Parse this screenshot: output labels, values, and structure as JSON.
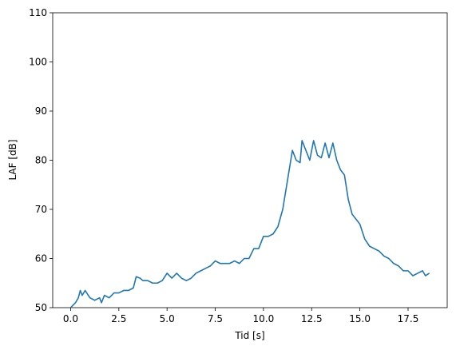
{
  "chart_data": {
    "type": "line",
    "x_label": "Tid [s]",
    "y_label": "LAF [dB]",
    "x": [
      0,
      0.25,
      0.4,
      0.5,
      0.6,
      0.75,
      1.0,
      1.25,
      1.5,
      1.6,
      1.75,
      2.0,
      2.25,
      2.5,
      2.75,
      3.0,
      3.25,
      3.4,
      3.6,
      3.75,
      4.0,
      4.25,
      4.5,
      4.75,
      5.0,
      5.25,
      5.5,
      5.75,
      6.0,
      6.25,
      6.5,
      6.75,
      7.0,
      7.25,
      7.5,
      7.75,
      8.0,
      8.25,
      8.5,
      8.75,
      9.0,
      9.25,
      9.5,
      9.75,
      10.0,
      10.25,
      10.5,
      10.75,
      11.0,
      11.25,
      11.5,
      11.7,
      11.9,
      12.0,
      12.2,
      12.4,
      12.6,
      12.8,
      13.0,
      13.2,
      13.4,
      13.6,
      13.8,
      14.0,
      14.2,
      14.4,
      14.6,
      14.8,
      15.0,
      15.25,
      15.5,
      15.75,
      16.0,
      16.25,
      16.5,
      16.75,
      17.0,
      17.25,
      17.5,
      17.75,
      18.0,
      18.25,
      18.4,
      18.6
    ],
    "series": [
      {
        "color": "#1f77b4",
        "values": [
          50,
          51,
          52,
          53.5,
          52.5,
          53.5,
          52,
          51.5,
          52,
          51,
          52.5,
          52,
          53,
          53,
          53.5,
          53.5,
          54,
          56.3,
          56,
          55.5,
          55.5,
          55,
          55,
          55.5,
          57,
          56,
          57,
          56,
          55.5,
          56,
          57,
          57.5,
          58,
          58.5,
          59.5,
          59,
          59,
          59,
          59.5,
          59,
          60,
          60,
          62,
          62,
          64.5,
          64.5,
          65,
          66.5,
          70,
          76,
          82,
          80,
          79.5,
          84,
          82,
          80,
          84,
          81,
          80.5,
          83.5,
          80.5,
          83.5,
          80,
          78,
          77,
          72,
          69,
          68,
          67,
          64,
          62.5,
          62,
          61.5,
          60.5,
          60,
          59,
          58.5,
          57.5,
          57.5,
          56.5,
          57,
          57.5,
          56.5,
          57
        ]
      }
    ],
    "xlim": [
      -0.93,
      19.53
    ],
    "ylim": [
      50,
      110
    ],
    "xticks": [
      {
        "value": 0,
        "label": "0.0"
      },
      2.5,
      {
        "value": 5,
        "label": "5.0"
      },
      7.5,
      {
        "value": 10,
        "label": "10.0"
      },
      12.5,
      {
        "value": 15,
        "label": "15.0"
      },
      17.5
    ],
    "yticks": [
      50,
      60,
      70,
      80,
      90,
      100,
      110
    ]
  }
}
